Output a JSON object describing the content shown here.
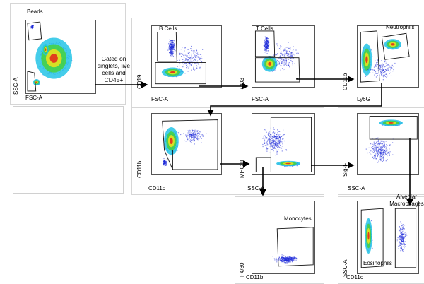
{
  "panels": [
    {
      "id": "p1",
      "x_label": "FSC-A",
      "y_label": "SSC-A",
      "gates": [
        {
          "label": "Beads"
        }
      ]
    },
    {
      "id": "p2",
      "x_label": "FSC-A",
      "y_label": "CD19",
      "gates": [
        {
          "label": "B Cells"
        }
      ]
    },
    {
      "id": "p3",
      "x_label": "FSC-A",
      "y_label": "CD3",
      "gates": [
        {
          "label": "T Cells"
        }
      ]
    },
    {
      "id": "p4",
      "x_label": "Ly6G",
      "y_label": "CD11b",
      "gates": [
        {
          "label": "Neutrophils"
        }
      ]
    },
    {
      "id": "p5",
      "x_label": "CD11c",
      "y_label": "CD11b",
      "gates": []
    },
    {
      "id": "p6",
      "x_label": "SSC-A",
      "y_label": "MHC-II",
      "gates": []
    },
    {
      "id": "p7",
      "x_label": "SSC-A",
      "y_label": "Sig-F",
      "gates": []
    },
    {
      "id": "p8",
      "x_label": "CD11b",
      "y_label": "F4/80",
      "gates": [
        {
          "label": "Monocytes"
        }
      ]
    },
    {
      "id": "p9",
      "x_label": "CD11c",
      "y_label": "SSC-A",
      "gates": [
        {
          "label": "Eosinophils"
        },
        {
          "label": "Alveolar Macrophages"
        }
      ]
    }
  ],
  "annotations": {
    "gating_note": [
      "Gated on",
      "singlets, live",
      "cells and",
      "CD45+"
    ]
  },
  "colors": {
    "low": "#1f2bd8",
    "mid": "#25c4e6",
    "high": "#46d23d",
    "peak": "#f0e21c",
    "max": "#e3221b"
  }
}
